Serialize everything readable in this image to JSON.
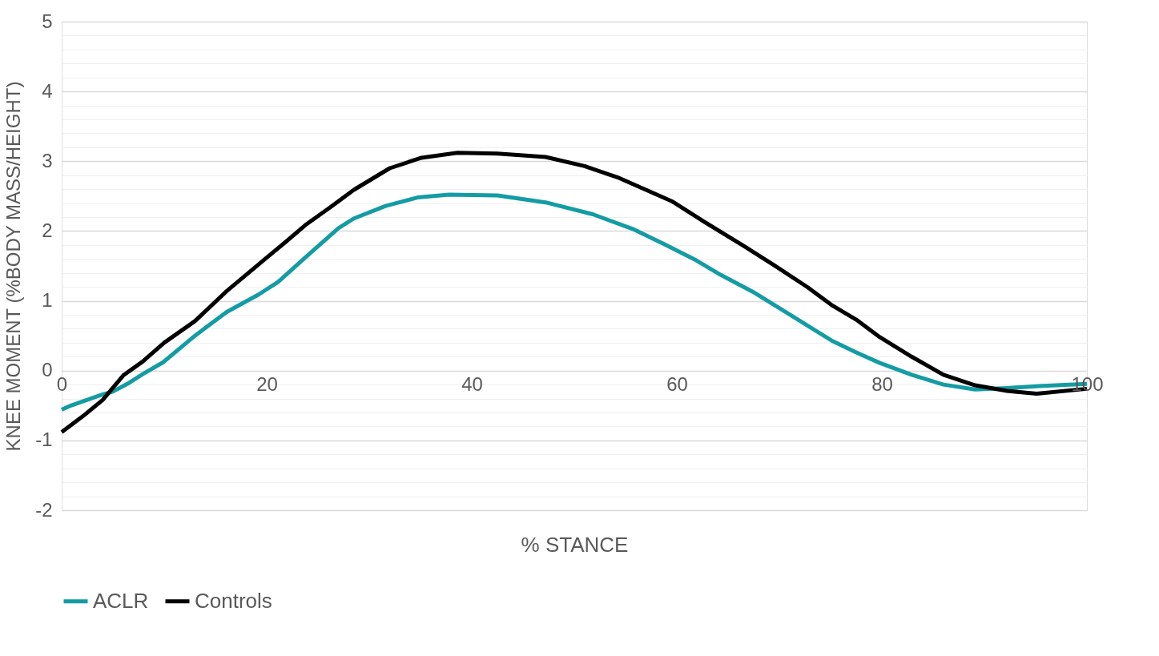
{
  "chart_data": {
    "type": "line",
    "xlabel": "% STANCE",
    "ylabel": "KNEE MOMENT (%BODY MASS/HEIGHT)",
    "xlim": [
      0,
      100
    ],
    "xticks": [
      0,
      20,
      40,
      60,
      80,
      100
    ],
    "ylim": [
      -2,
      5
    ],
    "yticks": [
      -2,
      {
        "value": -1.8,
        "label": null
      },
      {
        "value": -1.6,
        "label": null
      },
      {
        "value": -1.4,
        "label": null
      },
      {
        "value": -1.2,
        "label": null
      },
      -1,
      {
        "value": -0.8,
        "label": null
      },
      {
        "value": -0.6,
        "label": null
      },
      {
        "value": -0.4,
        "label": null
      },
      {
        "value": -0.2,
        "label": null
      },
      0,
      {
        "value": 0.2,
        "label": null
      },
      {
        "value": 0.4,
        "label": null
      },
      {
        "value": 0.6,
        "label": null
      },
      {
        "value": 0.8,
        "label": null
      },
      1,
      {
        "value": 1.2,
        "label": null
      },
      {
        "value": 1.4,
        "label": null
      },
      {
        "value": 1.6,
        "label": null
      },
      {
        "value": 1.8,
        "label": null
      },
      2,
      {
        "value": 2.2,
        "label": null
      },
      {
        "value": 2.4,
        "label": null
      },
      {
        "value": 2.6,
        "label": null
      },
      {
        "value": 2.8,
        "label": null
      },
      3,
      {
        "value": 3.2,
        "label": null
      },
      {
        "value": 3.4,
        "label": null
      },
      {
        "value": 3.6,
        "label": null
      },
      {
        "value": 3.8,
        "label": null
      },
      4,
      {
        "value": 4.2,
        "label": null
      },
      {
        "value": 4.4,
        "label": null
      },
      {
        "value": 4.6,
        "label": null
      },
      {
        "value": 4.8,
        "label": null
      },
      5
    ],
    "grid": "y",
    "legend": "bottom",
    "marker": "none",
    "line_style": "solid",
    "series": [
      {
        "name": "ACLR",
        "color": "#139ca3",
        "x": [
          0,
          0.9,
          4.0,
          5.0,
          6.4,
          7.9,
          9.9,
          13.0,
          16.1,
          19.2,
          21.1,
          23.9,
          27.0,
          28.5,
          31.6,
          34.7,
          37.8,
          42.5,
          47.2,
          51.8,
          55.7,
          58.8,
          61.9,
          64.3,
          67.4,
          70.5,
          72.8,
          75.1,
          77.5,
          79.8,
          82.9,
          86.0,
          89.1,
          92.2,
          95.3,
          100
        ],
        "values": [
          -0.56,
          -0.5,
          -0.34,
          -0.3,
          -0.19,
          -0.05,
          0.12,
          0.5,
          0.84,
          1.09,
          1.27,
          1.64,
          2.04,
          2.18,
          2.36,
          2.48,
          2.52,
          2.51,
          2.41,
          2.24,
          2.03,
          1.81,
          1.58,
          1.37,
          1.13,
          0.85,
          0.64,
          0.43,
          0.26,
          0.11,
          -0.06,
          -0.2,
          -0.27,
          -0.25,
          -0.22,
          -0.19
        ]
      },
      {
        "name": "Controls",
        "color": "#000000",
        "x": [
          0,
          2.1,
          4.0,
          6.0,
          7.9,
          10.0,
          13.0,
          16.1,
          20.0,
          21.9,
          23.9,
          26.2,
          28.5,
          32.0,
          35.1,
          38.6,
          42.5,
          47.2,
          51.0,
          54.2,
          57.3,
          59.6,
          62.7,
          66.6,
          69.7,
          72.8,
          75.1,
          77.5,
          79.8,
          82.9,
          86.0,
          89.1,
          92.2,
          95.1,
          100
        ],
        "values": [
          -0.88,
          -0.65,
          -0.42,
          -0.07,
          0.13,
          0.4,
          0.71,
          1.14,
          1.62,
          1.85,
          2.1,
          2.34,
          2.59,
          2.9,
          3.05,
          3.12,
          3.11,
          3.06,
          2.93,
          2.77,
          2.57,
          2.42,
          2.13,
          1.78,
          1.49,
          1.19,
          0.94,
          0.73,
          0.48,
          0.2,
          -0.06,
          -0.21,
          -0.29,
          -0.33,
          -0.26
        ]
      }
    ]
  }
}
